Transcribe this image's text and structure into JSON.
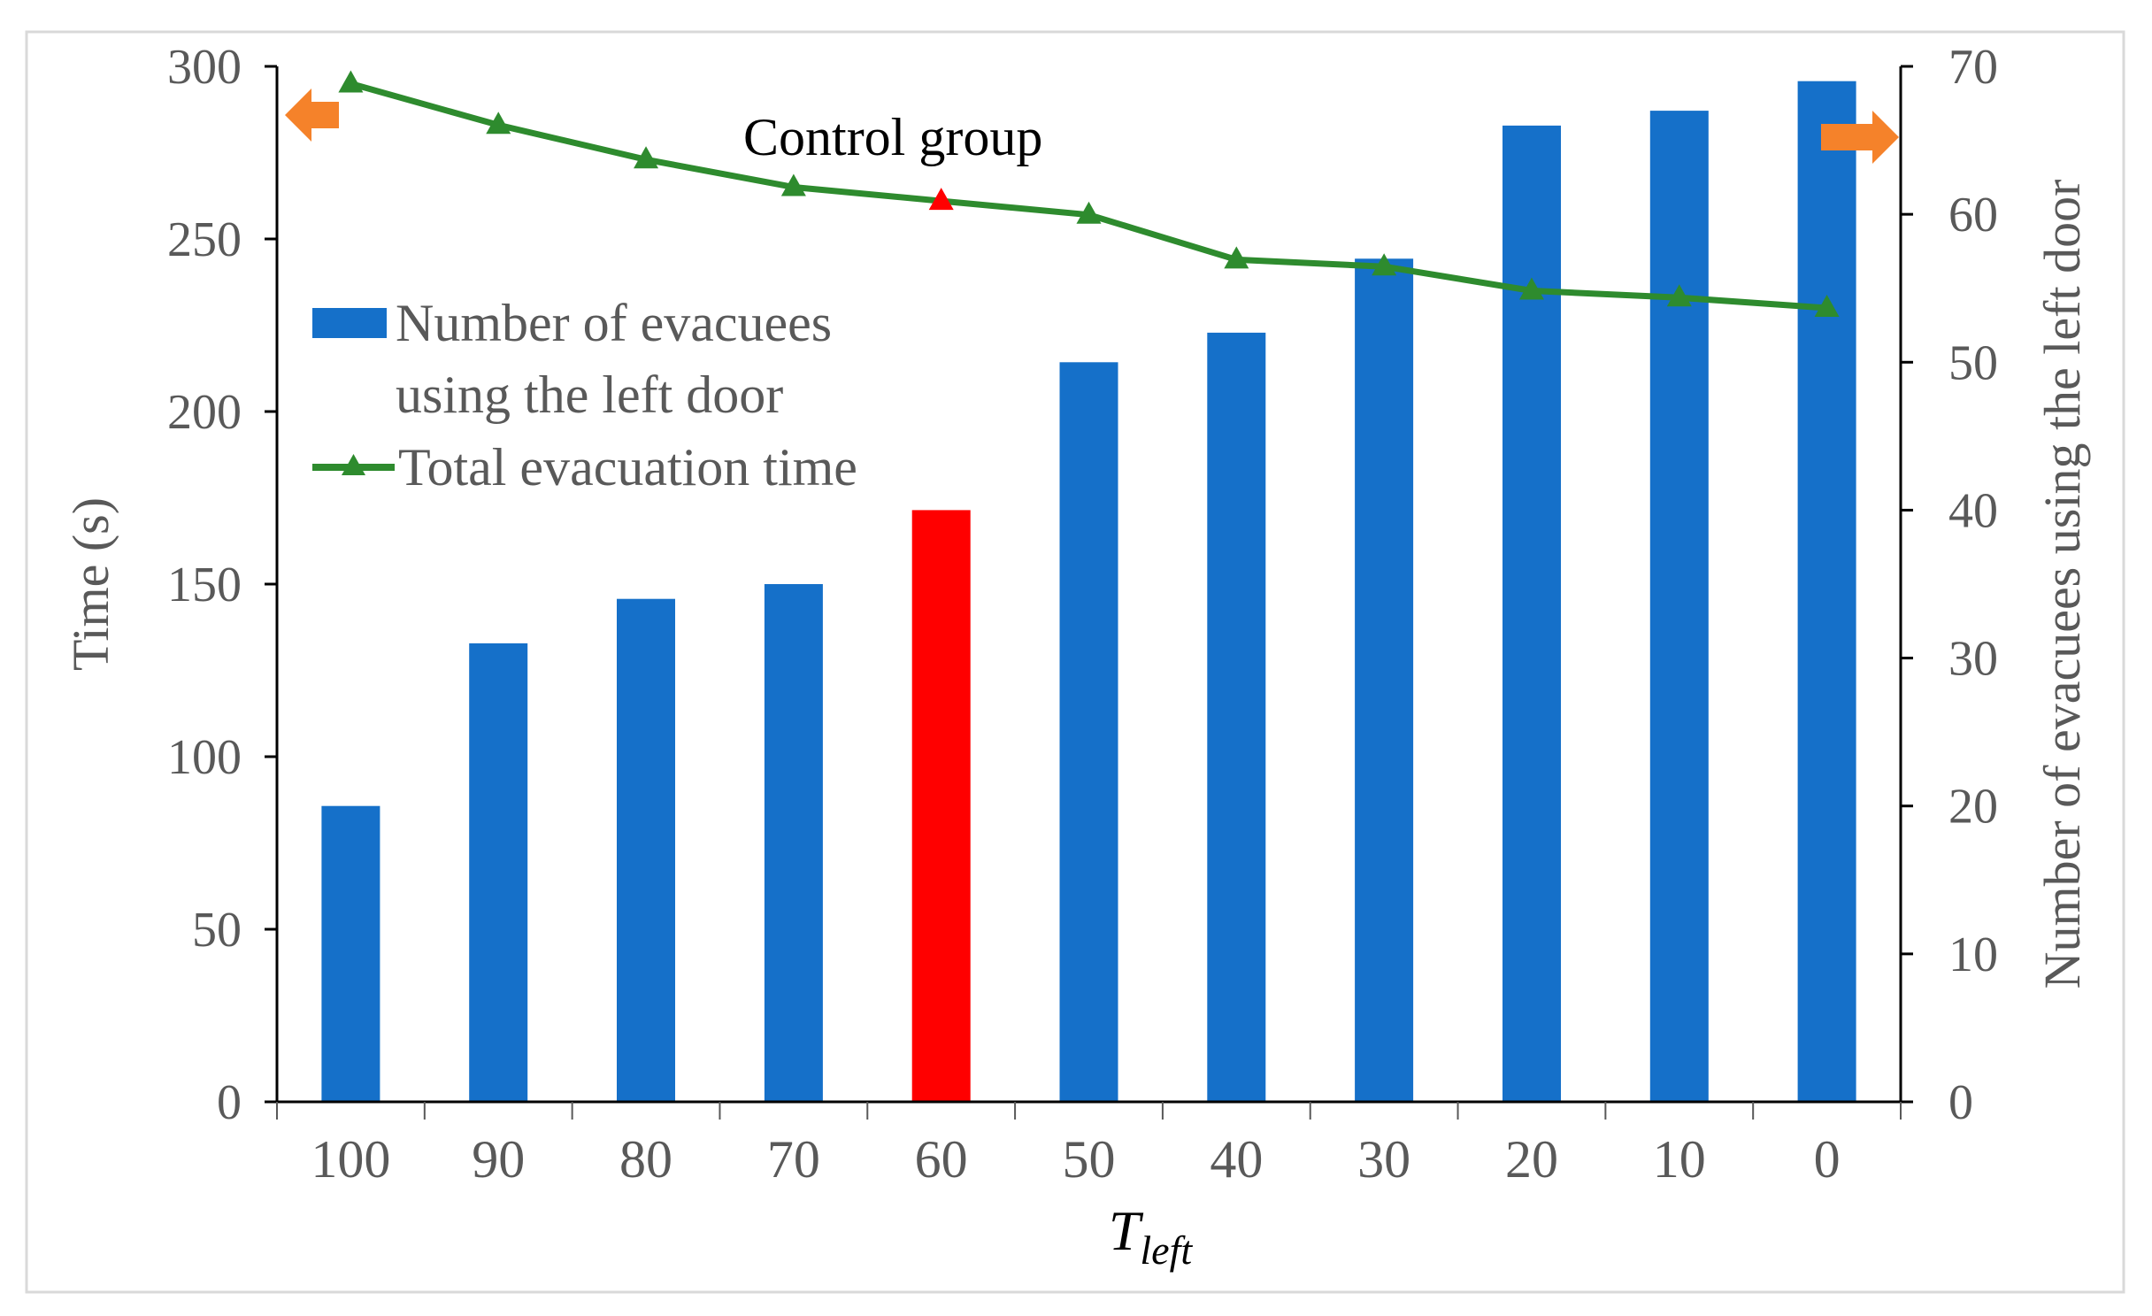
{
  "chart_data": {
    "type": "bar+line",
    "title": "",
    "annotation": "Control group",
    "xlabel": {
      "main": "T",
      "sub": "left"
    },
    "ylabel_left": "Time (s)",
    "ylabel_right": "Number of evacuees using the left door",
    "categories": [
      "100",
      "90",
      "80",
      "70",
      "60",
      "50",
      "40",
      "30",
      "20",
      "10",
      "0"
    ],
    "ylim_left": [
      0,
      300
    ],
    "yticks_left": [
      "0",
      "50",
      "100",
      "150",
      "200",
      "250",
      "300"
    ],
    "ylim_right": [
      0,
      70
    ],
    "yticks_right": [
      "0",
      "10",
      "20",
      "30",
      "40",
      "50",
      "60",
      "70"
    ],
    "series": [
      {
        "name": "Number of evacuees using the left door",
        "legend_lines": [
          "Number of evacuees",
          "using the left door"
        ],
        "type": "bar",
        "axis": "right",
        "values": [
          20,
          31,
          34,
          35,
          40,
          50,
          52,
          57,
          66,
          67,
          69
        ],
        "color": "#1570C9",
        "highlight_index": 4,
        "highlight_color": "#FF0000"
      },
      {
        "name": "Total evacuation time",
        "type": "line",
        "axis": "left",
        "marker": "triangle",
        "values": [
          295,
          283,
          273,
          265,
          261,
          257,
          244,
          242,
          235,
          233,
          230
        ],
        "color": "#2E8B2E",
        "highlight_index": 4,
        "highlight_color": "#FF0000"
      }
    ],
    "legend_position": "upper-left",
    "axis_indicators": {
      "left": "arrow-left",
      "right": "arrow-right",
      "color": "#F5822A"
    }
  }
}
